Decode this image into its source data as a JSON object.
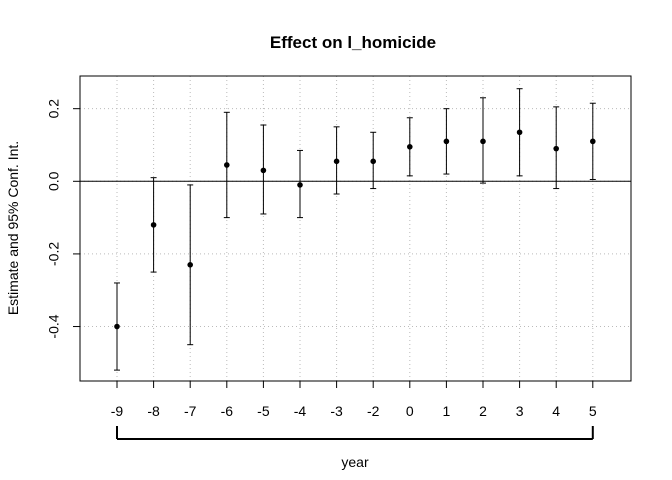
{
  "chart_data": {
    "type": "scatter",
    "title": "Effect on l_homicide",
    "xlabel": "year",
    "ylabel": "Estimate and 95% Conf. Int.",
    "x_ticks": [
      "-9",
      "-8",
      "-7",
      "-6",
      "-5",
      "-4",
      "-3",
      "-2",
      "0",
      "1",
      "2",
      "3",
      "4",
      "5"
    ],
    "y_ticks": [
      -0.4,
      -0.2,
      0.0,
      0.2
    ],
    "y_tick_labels": [
      "-0.4",
      "-0.2",
      "0.0",
      "0.2"
    ],
    "ylim": [
      -0.55,
      0.29
    ],
    "grid": true,
    "reference_line": 0,
    "series": [
      {
        "points": [
          {
            "x": "-9",
            "estimate": -0.4,
            "lower": -0.52,
            "upper": -0.28
          },
          {
            "x": "-8",
            "estimate": -0.12,
            "lower": -0.25,
            "upper": 0.01
          },
          {
            "x": "-7",
            "estimate": -0.23,
            "lower": -0.45,
            "upper": -0.01
          },
          {
            "x": "-6",
            "estimate": 0.045,
            "lower": -0.1,
            "upper": 0.19
          },
          {
            "x": "-5",
            "estimate": 0.03,
            "lower": -0.09,
            "upper": 0.155
          },
          {
            "x": "-4",
            "estimate": -0.01,
            "lower": -0.1,
            "upper": 0.085
          },
          {
            "x": "-3",
            "estimate": 0.055,
            "lower": -0.035,
            "upper": 0.15
          },
          {
            "x": "-2",
            "estimate": 0.055,
            "lower": -0.02,
            "upper": 0.135
          },
          {
            "x": "0",
            "estimate": 0.095,
            "lower": 0.015,
            "upper": 0.175
          },
          {
            "x": "1",
            "estimate": 0.11,
            "lower": 0.02,
            "upper": 0.2
          },
          {
            "x": "2",
            "estimate": 0.11,
            "lower": -0.005,
            "upper": 0.23
          },
          {
            "x": "3",
            "estimate": 0.135,
            "lower": 0.015,
            "upper": 0.255
          },
          {
            "x": "4",
            "estimate": 0.09,
            "lower": -0.02,
            "upper": 0.205
          },
          {
            "x": "5",
            "estimate": 0.11,
            "lower": 0.005,
            "upper": 0.215
          }
        ]
      }
    ],
    "colors": {
      "points": "#000000",
      "grid": "#bbbbbb",
      "axes": "#000000"
    }
  }
}
